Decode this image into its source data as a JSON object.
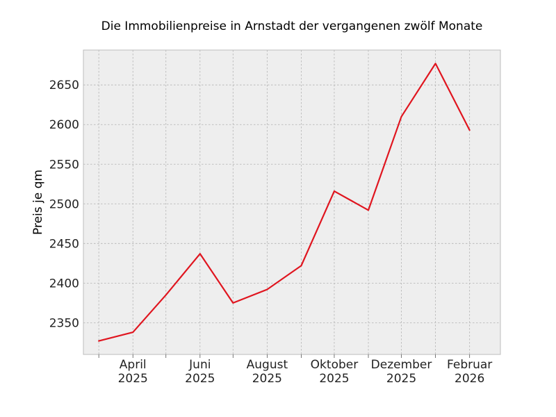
{
  "chart_data": {
    "type": "line",
    "title": "Die Immobilienpreise in Arnstadt der vergangenen zwölf Monate",
    "xlabel": "",
    "ylabel": "Preis je qm",
    "x": [
      "2025-03",
      "2025-04",
      "2025-05",
      "2025-06",
      "2025-07",
      "2025-08",
      "2025-09",
      "2025-10",
      "2025-11",
      "2025-12",
      "2026-01",
      "2026-02"
    ],
    "series": [
      {
        "values": [
          2327,
          2338,
          2385,
          2437,
          2375,
          2392,
          2422,
          2516,
          2492,
          2610,
          2677,
          2593
        ],
        "color": "#e0151f"
      }
    ],
    "x_ticks": [
      {
        "x": "2025-04",
        "month": "April",
        "year": "2025"
      },
      {
        "x": "2025-06",
        "month": "Juni",
        "year": "2025"
      },
      {
        "x": "2025-08",
        "month": "August",
        "year": "2025"
      },
      {
        "x": "2025-10",
        "month": "Oktober",
        "year": "2025"
      },
      {
        "x": "2025-12",
        "month": "Dezember",
        "year": "2025"
      },
      {
        "x": "2026-02",
        "month": "Februar",
        "year": "2026"
      }
    ],
    "xlim": [
      "2025-02-15",
      "2026-03-01"
    ],
    "y_ticks": [
      2350,
      2400,
      2450,
      2500,
      2550,
      2600,
      2650
    ],
    "ylim": [
      2310,
      2694
    ],
    "grid": true,
    "background": "#eeeeee"
  }
}
